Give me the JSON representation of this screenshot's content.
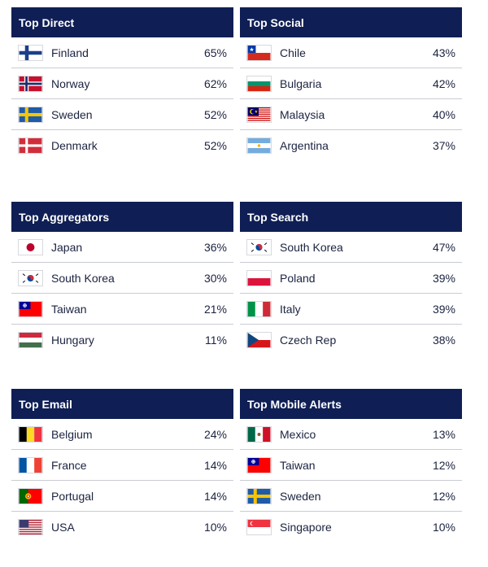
{
  "panels": [
    {
      "title": "Top Direct",
      "rows": [
        {
          "country": "Finland",
          "pct": "65%",
          "flag": "finland-flag-icon"
        },
        {
          "country": "Norway",
          "pct": "62%",
          "flag": "norway-flag-icon"
        },
        {
          "country": "Sweden",
          "pct": "52%",
          "flag": "sweden-flag-icon"
        },
        {
          "country": "Denmark",
          "pct": "52%",
          "flag": "denmark-flag-icon"
        }
      ]
    },
    {
      "title": "Top Social",
      "rows": [
        {
          "country": "Chile",
          "pct": "43%",
          "flag": "chile-flag-icon"
        },
        {
          "country": "Bulgaria",
          "pct": "42%",
          "flag": "bulgaria-flag-icon"
        },
        {
          "country": "Malaysia",
          "pct": "40%",
          "flag": "malaysia-flag-icon"
        },
        {
          "country": "Argentina",
          "pct": "37%",
          "flag": "argentina-flag-icon"
        }
      ]
    },
    {
      "title": "Top Aggregators",
      "rows": [
        {
          "country": "Japan",
          "pct": "36%",
          "flag": "japan-flag-icon"
        },
        {
          "country": "South Korea",
          "pct": "30%",
          "flag": "south-korea-flag-icon"
        },
        {
          "country": "Taiwan",
          "pct": "21%",
          "flag": "taiwan-flag-icon"
        },
        {
          "country": "Hungary",
          "pct": "11%",
          "flag": "hungary-flag-icon"
        }
      ]
    },
    {
      "title": "Top Search",
      "rows": [
        {
          "country": "South Korea",
          "pct": "47%",
          "flag": "south-korea-flag-icon"
        },
        {
          "country": "Poland",
          "pct": "39%",
          "flag": "poland-flag-icon"
        },
        {
          "country": "Italy",
          "pct": "39%",
          "flag": "italy-flag-icon"
        },
        {
          "country": "Czech Rep",
          "pct": "38%",
          "flag": "czech-flag-icon"
        }
      ]
    },
    {
      "title": "Top Email",
      "rows": [
        {
          "country": "Belgium",
          "pct": "24%",
          "flag": "belgium-flag-icon"
        },
        {
          "country": "France",
          "pct": "14%",
          "flag": "france-flag-icon"
        },
        {
          "country": "Portugal",
          "pct": "14%",
          "flag": "portugal-flag-icon"
        },
        {
          "country": "USA",
          "pct": "10%",
          "flag": "usa-flag-icon"
        }
      ]
    },
    {
      "title": "Top Mobile Alerts",
      "rows": [
        {
          "country": "Mexico",
          "pct": "13%",
          "flag": "mexico-flag-icon"
        },
        {
          "country": "Taiwan",
          "pct": "12%",
          "flag": "taiwan-flag-icon"
        },
        {
          "country": "Sweden",
          "pct": "12%",
          "flag": "sweden-flag-icon"
        },
        {
          "country": "Singapore",
          "pct": "10%",
          "flag": "singapore-flag-icon"
        }
      ]
    }
  ],
  "colors": {
    "header_bg": "#0f1f55",
    "header_text": "#ffffff",
    "row_text": "#1b2340",
    "divider": "#c9ccd4"
  }
}
